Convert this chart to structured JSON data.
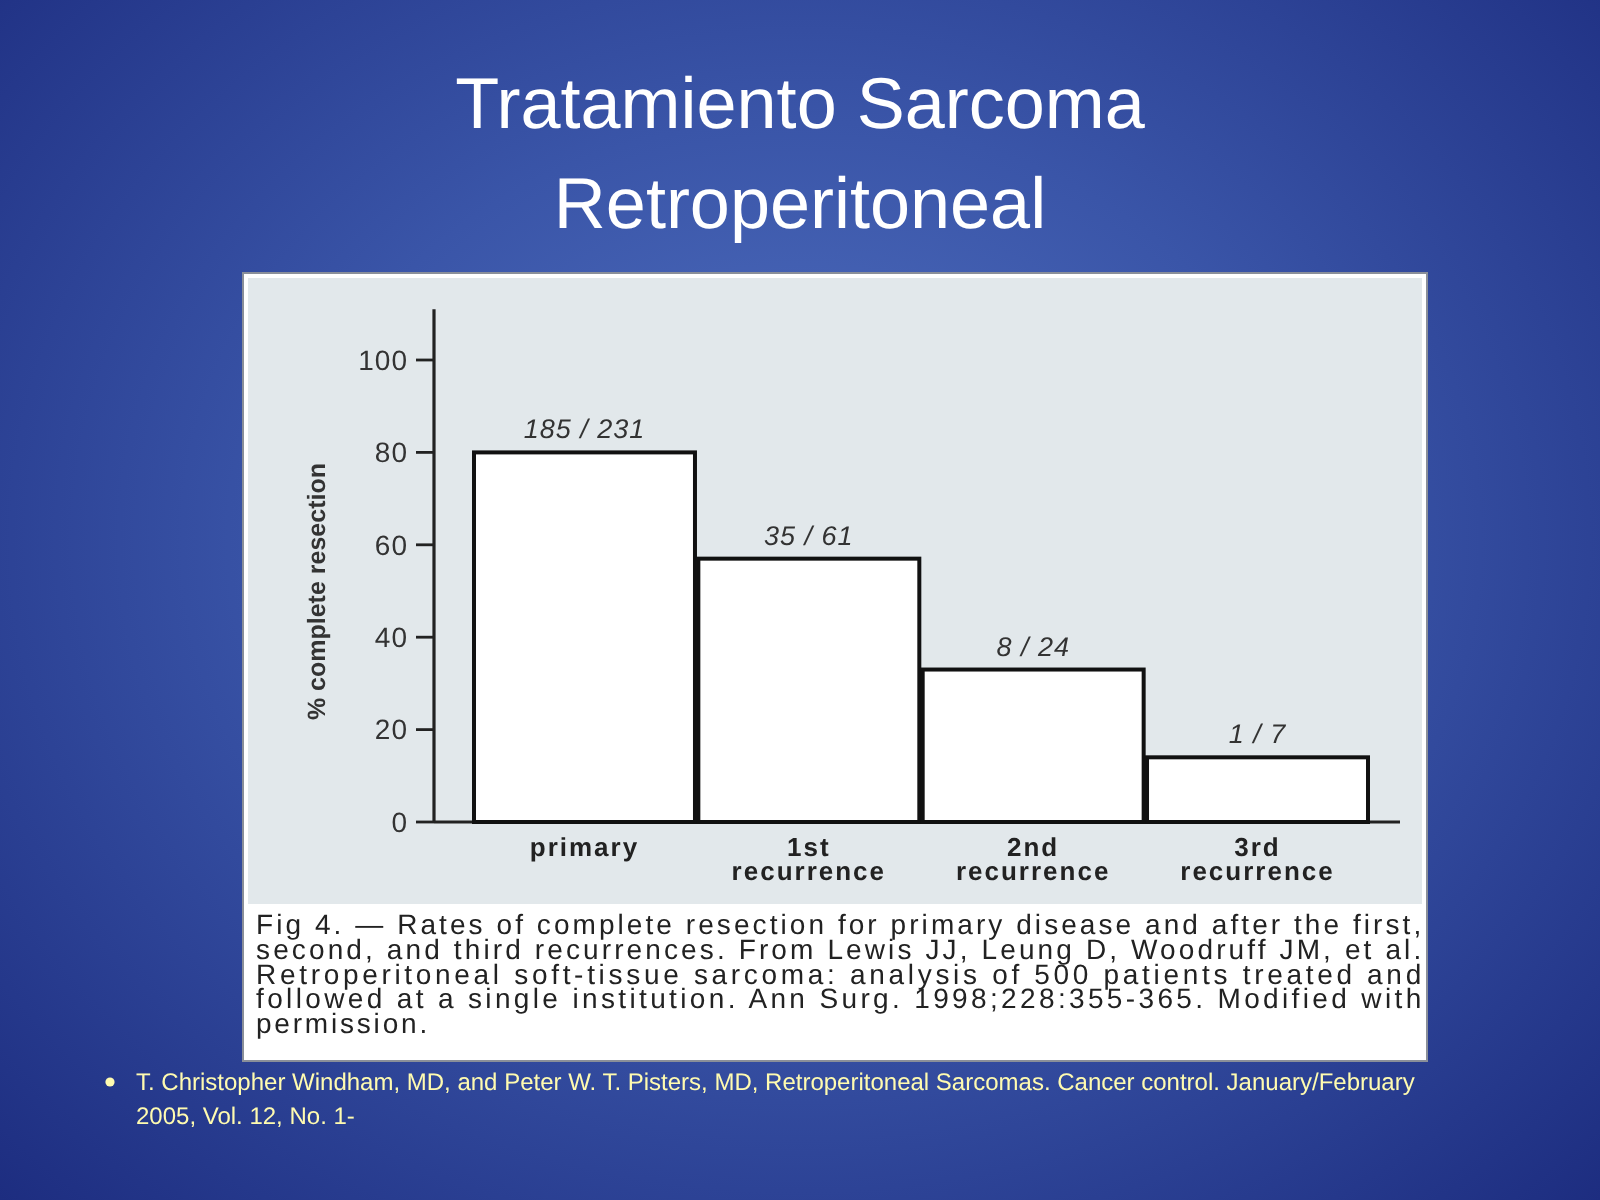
{
  "chart_data": {
    "type": "bar",
    "title": "Tratamiento Sarcoma Retroperitoneal",
    "ylabel": "% complete resection",
    "categories": [
      "primary",
      "1st recurrence",
      "2nd recurrence",
      "3rd recurrence"
    ],
    "values": [
      80,
      57,
      33,
      14
    ],
    "color": "#ffffff",
    "ylim": [
      0,
      111
    ],
    "yticks": [
      0,
      20,
      40,
      60,
      80,
      100
    ],
    "annotations": [
      {
        "text": "185 / 231",
        "x": "primary",
        "y": 80
      },
      {
        "text": "35 / 61",
        "x": "1st recurrence",
        "y": 57
      },
      {
        "text": "8 / 24",
        "x": "2nd recurrence",
        "y": 33
      },
      {
        "text": "1 / 7",
        "x": "3rd recurrence",
        "y": 14
      },
      "Fig 4. — Rates of complete resection for primary disease and after the first, second, and third recurrences. From Lewis JJ, Leung D, Woodruff JM, et al. Retroperitoneal soft-tissue sarcoma: analysis of 500 patients treated and followed at a single institution. Ann Surg. 1998;228:355-365. Modified with permission.",
      "T. Christopher Windham, MD, and Peter W. T. Pisters, MD, Retroperitoneal Sarcomas. Cancer control. January/February 2005, Vol. 12, No. 1-"
    ]
  }
}
